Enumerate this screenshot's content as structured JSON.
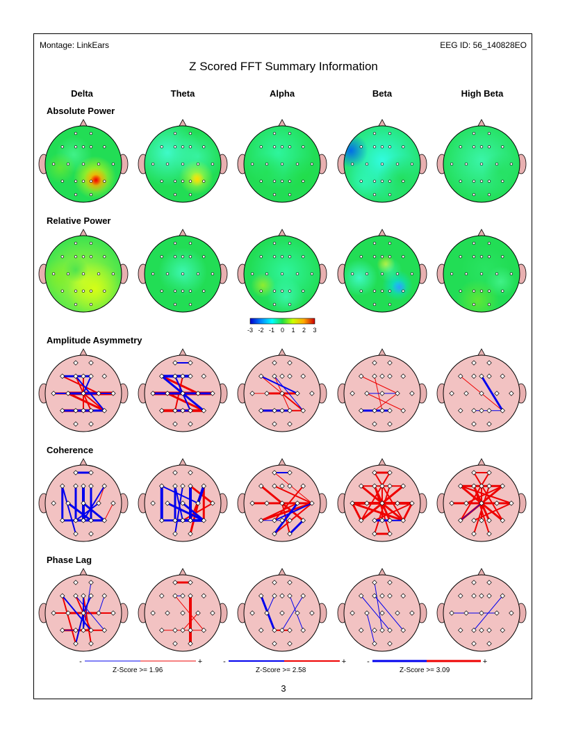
{
  "header": {
    "montage": "Montage:  LinkEars",
    "eeg_id": "EEG ID:  56_140828EO"
  },
  "title": "Z Scored FFT Summary Information",
  "bands": [
    "Delta",
    "Theta",
    "Alpha",
    "Beta",
    "High Beta"
  ],
  "sections": {
    "absolute_power": "Absolute Power",
    "relative_power": "Relative Power",
    "amplitude_asymmetry": "Amplitude Asymmetry",
    "coherence": "Coherence",
    "phase_lag": "Phase Lag"
  },
  "colorbar": {
    "ticks": [
      "-3",
      "-2",
      "-1",
      "0",
      "1",
      "2",
      "3"
    ]
  },
  "legends": [
    {
      "minus": "-",
      "plus": "+",
      "label": "Z-Score >= 1.96"
    },
    {
      "minus": "-",
      "plus": "+",
      "label": "Z-Score >= 2.58"
    },
    {
      "minus": "-",
      "plus": "+",
      "label": "Z-Score >= 3.09"
    }
  ],
  "page_number": "3",
  "colors": {
    "neg": "#0000ee",
    "pos": "#ee0000",
    "head_fill": "#f2c2c2",
    "ear": "#e8b0b0",
    "base_map": "#22dd55"
  }
}
